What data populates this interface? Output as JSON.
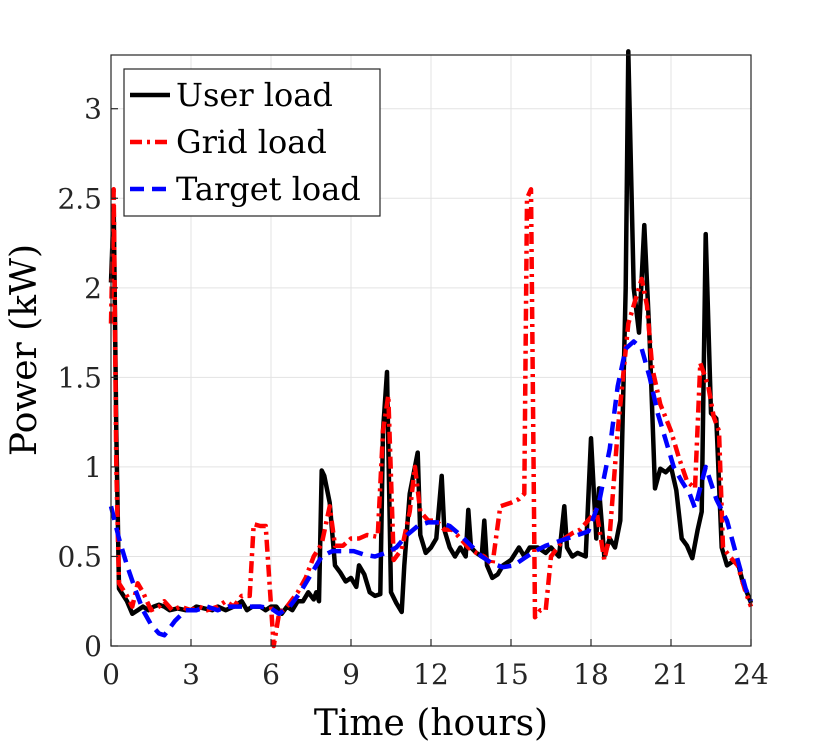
{
  "chart_data": {
    "type": "line",
    "title": "",
    "xlabel": "Time (hours)",
    "ylabel": "Power (kW)",
    "xlim": [
      0,
      24
    ],
    "ylim": [
      0,
      3.3
    ],
    "xticks": [
      0,
      3,
      6,
      9,
      12,
      15,
      18,
      21,
      24
    ],
    "yticks": [
      0,
      0.5,
      1,
      1.5,
      2,
      2.5,
      3
    ],
    "ytick_labels": [
      "0",
      "0.5",
      "1",
      "1.5",
      "2",
      "2.5",
      "3"
    ],
    "grid": true,
    "legend_position": "top-left",
    "series": [
      {
        "name": "User load",
        "color": "#000000",
        "style": "solid",
        "points": [
          [
            0,
            2.03
          ],
          [
            0.1,
            2.45
          ],
          [
            0.2,
            1.2
          ],
          [
            0.3,
            0.32
          ],
          [
            0.6,
            0.25
          ],
          [
            0.8,
            0.18
          ],
          [
            1.0,
            0.2
          ],
          [
            1.2,
            0.22
          ],
          [
            1.4,
            0.2
          ],
          [
            1.6,
            0.22
          ],
          [
            1.8,
            0.23
          ],
          [
            2.0,
            0.22
          ],
          [
            2.2,
            0.2
          ],
          [
            2.5,
            0.21
          ],
          [
            2.8,
            0.2
          ],
          [
            3.0,
            0.2
          ],
          [
            3.2,
            0.22
          ],
          [
            3.5,
            0.21
          ],
          [
            3.8,
            0.2
          ],
          [
            4.0,
            0.22
          ],
          [
            4.3,
            0.2
          ],
          [
            4.6,
            0.22
          ],
          [
            4.9,
            0.25
          ],
          [
            5.1,
            0.2
          ],
          [
            5.3,
            0.22
          ],
          [
            5.6,
            0.22
          ],
          [
            5.8,
            0.2
          ],
          [
            6.0,
            0.22
          ],
          [
            6.2,
            0.22
          ],
          [
            6.4,
            0.18
          ],
          [
            6.6,
            0.22
          ],
          [
            6.8,
            0.2
          ],
          [
            7.0,
            0.25
          ],
          [
            7.2,
            0.25
          ],
          [
            7.4,
            0.3
          ],
          [
            7.6,
            0.26
          ],
          [
            7.7,
            0.3
          ],
          [
            7.8,
            0.25
          ],
          [
            7.9,
            0.98
          ],
          [
            8.0,
            0.95
          ],
          [
            8.2,
            0.8
          ],
          [
            8.4,
            0.45
          ],
          [
            8.6,
            0.41
          ],
          [
            8.8,
            0.36
          ],
          [
            9.0,
            0.38
          ],
          [
            9.2,
            0.33
          ],
          [
            9.3,
            0.45
          ],
          [
            9.5,
            0.4
          ],
          [
            9.7,
            0.3
          ],
          [
            9.9,
            0.28
          ],
          [
            10.1,
            0.29
          ],
          [
            10.2,
            1.2
          ],
          [
            10.35,
            1.53
          ],
          [
            10.5,
            0.3
          ],
          [
            10.7,
            0.24
          ],
          [
            10.9,
            0.19
          ],
          [
            11.0,
            0.45
          ],
          [
            11.2,
            0.85
          ],
          [
            11.5,
            1.08
          ],
          [
            11.6,
            0.62
          ],
          [
            11.8,
            0.52
          ],
          [
            12.0,
            0.55
          ],
          [
            12.2,
            0.6
          ],
          [
            12.4,
            0.95
          ],
          [
            12.5,
            0.65
          ],
          [
            12.7,
            0.55
          ],
          [
            12.9,
            0.5
          ],
          [
            13.1,
            0.55
          ],
          [
            13.3,
            0.5
          ],
          [
            13.4,
            0.76
          ],
          [
            13.5,
            0.55
          ],
          [
            13.7,
            0.52
          ],
          [
            13.9,
            0.5
          ],
          [
            14.0,
            0.7
          ],
          [
            14.1,
            0.45
          ],
          [
            14.3,
            0.38
          ],
          [
            14.5,
            0.4
          ],
          [
            14.7,
            0.45
          ],
          [
            15.0,
            0.48
          ],
          [
            15.3,
            0.55
          ],
          [
            15.5,
            0.5
          ],
          [
            15.7,
            0.55
          ],
          [
            16.0,
            0.55
          ],
          [
            16.3,
            0.52
          ],
          [
            16.5,
            0.55
          ],
          [
            16.8,
            0.5
          ],
          [
            17.0,
            0.78
          ],
          [
            17.1,
            0.55
          ],
          [
            17.3,
            0.5
          ],
          [
            17.5,
            0.52
          ],
          [
            17.8,
            0.5
          ],
          [
            18.0,
            1.16
          ],
          [
            18.2,
            0.6
          ],
          [
            18.3,
            0.88
          ],
          [
            18.5,
            0.5
          ],
          [
            18.7,
            0.6
          ],
          [
            18.9,
            0.55
          ],
          [
            19.1,
            0.7
          ],
          [
            19.3,
            2.0
          ],
          [
            19.4,
            3.32
          ],
          [
            19.6,
            2.0
          ],
          [
            19.8,
            1.75
          ],
          [
            20.0,
            2.35
          ],
          [
            20.2,
            1.7
          ],
          [
            20.4,
            0.88
          ],
          [
            20.6,
            0.99
          ],
          [
            20.8,
            0.97
          ],
          [
            21.0,
            1.0
          ],
          [
            21.2,
            0.87
          ],
          [
            21.4,
            0.6
          ],
          [
            21.6,
            0.56
          ],
          [
            21.8,
            0.49
          ],
          [
            22.0,
            0.65
          ],
          [
            22.15,
            0.75
          ],
          [
            22.3,
            2.3
          ],
          [
            22.5,
            1.3
          ],
          [
            22.7,
            1.27
          ],
          [
            22.9,
            0.55
          ],
          [
            23.1,
            0.45
          ],
          [
            23.3,
            0.47
          ],
          [
            23.5,
            0.47
          ],
          [
            23.7,
            0.35
          ],
          [
            23.9,
            0.28
          ],
          [
            24.0,
            0.24
          ]
        ]
      },
      {
        "name": "Grid load",
        "color": "#ff0000",
        "style": "dashdot",
        "points": [
          [
            0,
            1.8
          ],
          [
            0.1,
            2.55
          ],
          [
            0.2,
            1.0
          ],
          [
            0.3,
            0.35
          ],
          [
            0.6,
            0.28
          ],
          [
            0.8,
            0.22
          ],
          [
            1.0,
            0.35
          ],
          [
            1.2,
            0.3
          ],
          [
            1.5,
            0.2
          ],
          [
            1.8,
            0.22
          ],
          [
            2.0,
            0.25
          ],
          [
            2.3,
            0.2
          ],
          [
            2.6,
            0.22
          ],
          [
            3.0,
            0.2
          ],
          [
            3.3,
            0.22
          ],
          [
            3.6,
            0.2
          ],
          [
            4.0,
            0.22
          ],
          [
            4.3,
            0.25
          ],
          [
            4.6,
            0.22
          ],
          [
            4.9,
            0.28
          ],
          [
            5.2,
            0.28
          ],
          [
            5.35,
            0.68
          ],
          [
            5.6,
            0.67
          ],
          [
            5.8,
            0.67
          ],
          [
            6.1,
            0.0
          ],
          [
            6.3,
            0.18
          ],
          [
            6.6,
            0.22
          ],
          [
            7.0,
            0.3
          ],
          [
            7.3,
            0.38
          ],
          [
            7.6,
            0.5
          ],
          [
            7.9,
            0.57
          ],
          [
            8.2,
            0.78
          ],
          [
            8.4,
            0.56
          ],
          [
            8.7,
            0.56
          ],
          [
            9.0,
            0.6
          ],
          [
            9.3,
            0.6
          ],
          [
            9.6,
            0.62
          ],
          [
            10.0,
            0.61
          ],
          [
            10.2,
            1.2
          ],
          [
            10.4,
            1.4
          ],
          [
            10.6,
            0.48
          ],
          [
            10.9,
            0.54
          ],
          [
            11.2,
            0.75
          ],
          [
            11.4,
            1.0
          ],
          [
            11.6,
            0.75
          ],
          [
            11.9,
            0.7
          ],
          [
            12.2,
            0.7
          ],
          [
            12.5,
            0.65
          ],
          [
            12.8,
            0.65
          ],
          [
            13.1,
            0.6
          ],
          [
            13.4,
            0.55
          ],
          [
            13.7,
            0.52
          ],
          [
            14.0,
            0.5
          ],
          [
            14.3,
            0.45
          ],
          [
            14.6,
            0.78
          ],
          [
            15.0,
            0.8
          ],
          [
            15.3,
            0.82
          ],
          [
            15.5,
            0.85
          ],
          [
            15.6,
            2.5
          ],
          [
            15.75,
            2.55
          ],
          [
            15.9,
            0.16
          ],
          [
            16.1,
            0.2
          ],
          [
            16.3,
            0.2
          ],
          [
            16.5,
            0.5
          ],
          [
            17.0,
            0.6
          ],
          [
            17.3,
            0.63
          ],
          [
            17.6,
            0.65
          ],
          [
            18.0,
            0.72
          ],
          [
            18.2,
            0.76
          ],
          [
            18.5,
            0.48
          ],
          [
            18.7,
            0.62
          ],
          [
            19.0,
            1.2
          ],
          [
            19.2,
            1.5
          ],
          [
            19.4,
            1.8
          ],
          [
            19.7,
            1.95
          ],
          [
            19.9,
            2.05
          ],
          [
            20.1,
            1.9
          ],
          [
            20.3,
            1.55
          ],
          [
            20.6,
            1.35
          ],
          [
            21.0,
            1.2
          ],
          [
            21.3,
            1.05
          ],
          [
            21.6,
            0.92
          ],
          [
            21.9,
            0.88
          ],
          [
            22.1,
            1.58
          ],
          [
            22.4,
            1.45
          ],
          [
            22.6,
            1.28
          ],
          [
            22.8,
            1.2
          ],
          [
            22.95,
            0.55
          ],
          [
            23.2,
            0.5
          ],
          [
            23.5,
            0.45
          ],
          [
            23.8,
            0.3
          ],
          [
            24.0,
            0.22
          ]
        ]
      },
      {
        "name": "Target load",
        "color": "#0000ff",
        "style": "dashed",
        "points": [
          [
            0,
            0.78
          ],
          [
            0.3,
            0.6
          ],
          [
            0.6,
            0.45
          ],
          [
            0.9,
            0.32
          ],
          [
            1.2,
            0.2
          ],
          [
            1.5,
            0.12
          ],
          [
            1.8,
            0.07
          ],
          [
            2.0,
            0.06
          ],
          [
            2.4,
            0.14
          ],
          [
            2.8,
            0.2
          ],
          [
            3.2,
            0.2
          ],
          [
            3.6,
            0.22
          ],
          [
            4.0,
            0.2
          ],
          [
            4.4,
            0.22
          ],
          [
            4.8,
            0.22
          ],
          [
            5.2,
            0.22
          ],
          [
            5.6,
            0.22
          ],
          [
            6.0,
            0.21
          ],
          [
            6.3,
            0.18
          ],
          [
            6.7,
            0.22
          ],
          [
            7.1,
            0.3
          ],
          [
            7.5,
            0.4
          ],
          [
            7.9,
            0.5
          ],
          [
            8.3,
            0.53
          ],
          [
            8.7,
            0.53
          ],
          [
            9.1,
            0.53
          ],
          [
            9.5,
            0.51
          ],
          [
            9.9,
            0.5
          ],
          [
            10.3,
            0.52
          ],
          [
            10.7,
            0.55
          ],
          [
            11.1,
            0.62
          ],
          [
            11.5,
            0.67
          ],
          [
            11.9,
            0.69
          ],
          [
            12.3,
            0.69
          ],
          [
            12.7,
            0.67
          ],
          [
            13.1,
            0.62
          ],
          [
            13.5,
            0.56
          ],
          [
            13.9,
            0.5
          ],
          [
            14.3,
            0.46
          ],
          [
            14.7,
            0.44
          ],
          [
            15.1,
            0.45
          ],
          [
            15.5,
            0.49
          ],
          [
            15.9,
            0.53
          ],
          [
            16.3,
            0.56
          ],
          [
            16.7,
            0.58
          ],
          [
            17.1,
            0.6
          ],
          [
            17.5,
            0.62
          ],
          [
            17.9,
            0.64
          ],
          [
            18.3,
            0.8
          ],
          [
            18.7,
            1.1
          ],
          [
            19.0,
            1.45
          ],
          [
            19.3,
            1.66
          ],
          [
            19.6,
            1.7
          ],
          [
            19.9,
            1.66
          ],
          [
            20.2,
            1.5
          ],
          [
            20.5,
            1.3
          ],
          [
            20.8,
            1.15
          ],
          [
            21.1,
            1.0
          ],
          [
            21.4,
            0.92
          ],
          [
            21.7,
            0.85
          ],
          [
            21.9,
            0.77
          ],
          [
            22.3,
            1.0
          ],
          [
            22.7,
            0.82
          ],
          [
            23.1,
            0.7
          ],
          [
            23.5,
            0.48
          ],
          [
            23.8,
            0.32
          ],
          [
            24.0,
            0.25
          ]
        ]
      }
    ]
  }
}
